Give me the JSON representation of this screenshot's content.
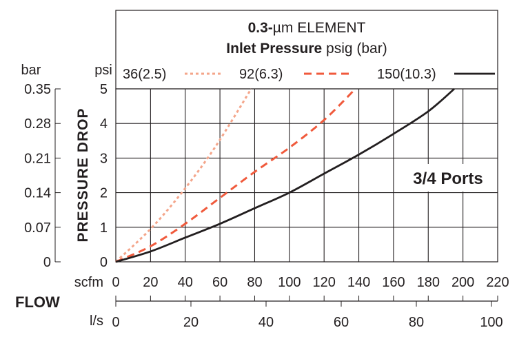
{
  "chart_data": {
    "type": "line",
    "title_bold": "0.3-",
    "title_rest": "µm ELEMENT",
    "subtitle_bold": "Inlet Pressure",
    "subtitle_rest": " psig (bar)",
    "annotation": "3/4 Ports",
    "ylabel": "PRESSURE DROP",
    "ylabel_left_unit": "bar",
    "ylabel_right_unit": "psi",
    "xlabel": "FLOW",
    "x_unit_top": "scfm",
    "x_unit_bottom": "l/s",
    "xlim": [
      0,
      220
    ],
    "ylim": [
      0,
      5
    ],
    "grid": true,
    "x_ticks": [
      "0",
      "20",
      "40",
      "60",
      "80",
      "100",
      "120",
      "140",
      "160",
      "180",
      "200",
      "220"
    ],
    "y_ticks_psi": [
      "0",
      "1",
      "2",
      "3",
      "4",
      "5"
    ],
    "y_ticks_bar": [
      "0",
      "0.07",
      "0.14",
      "0.21",
      "0.28",
      "0.35"
    ],
    "x_ticks_ls": [
      "0",
      "20",
      "40",
      "60",
      "80",
      "100"
    ],
    "legend_placement": "top",
    "series": [
      {
        "name": "36(2.5)",
        "color": "#f4a58a",
        "style": "dotted",
        "x": [
          0,
          20,
          38,
          57,
          78
        ],
        "y": [
          0,
          0.95,
          2.0,
          3.3,
          5.0
        ]
      },
      {
        "name": "92(6.3)",
        "color": "#f05a3c",
        "style": "dashed",
        "x": [
          0,
          20,
          40,
          60,
          80,
          100,
          120,
          138
        ],
        "y": [
          0,
          0.45,
          1.1,
          1.85,
          2.6,
          3.3,
          4.1,
          5.0
        ]
      },
      {
        "name": "150(10.3)",
        "color": "#231f20",
        "style": "solid",
        "x": [
          0,
          20,
          40,
          60,
          80,
          100,
          120,
          140,
          160,
          180,
          195
        ],
        "y": [
          0,
          0.3,
          0.7,
          1.1,
          1.55,
          2.0,
          2.55,
          3.1,
          3.7,
          4.35,
          5.0
        ]
      }
    ]
  }
}
